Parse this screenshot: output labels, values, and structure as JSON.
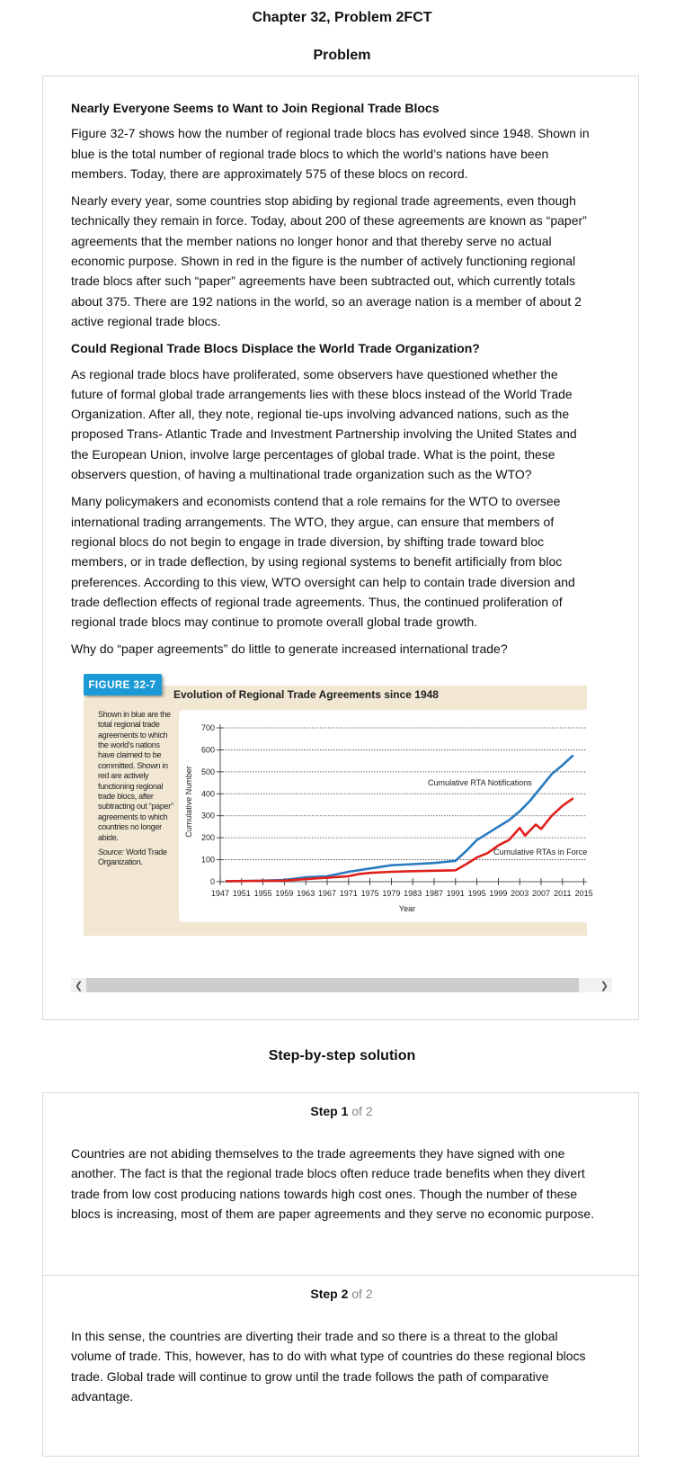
{
  "header": {
    "title": "Chapter 32, Problem 2FCT",
    "section": "Problem"
  },
  "problem": {
    "heading1": "Nearly Everyone Seems to Want to Join Regional Trade Blocs",
    "paragraphs1": [
      "Figure 32-7 shows how the number of regional trade blocs has evolved since 1948. Shown in blue is the total number of regional trade blocs to which the world’s nations have been members. Today, there are approximately 575 of these blocs on record.",
      "Nearly every year, some countries stop abiding by regional trade agreements, even though technically they remain in force. Today, about 200 of these agreements are known as “paper” agreements that the member nations no longer honor and that thereby serve no actual economic purpose. Shown in red in the figure is the number of actively functioning regional trade blocs after such “paper” agreements have been subtracted out, which currently totals about 375. There are 192 nations in the world, so an average nation is a member of about 2 active regional trade blocs."
    ],
    "heading2": "Could Regional Trade Blocs Displace the World Trade Organization?",
    "paragraphs2": [
      "As regional trade blocs have proliferated, some observers have questioned whether the future of formal global trade arrangements lies with these blocs instead of the World Trade Organization. After all, they note, regional tie-ups involving advanced nations, such as the proposed Trans- Atlantic Trade and Investment Partnership involving the United States and the European Union, involve large percentages of global trade. What is the point, these observers question, of having a multinational trade organization such as the WTO?",
      "Many policymakers and economists contend that a role remains for the WTO to oversee international trading arrangements. The WTO, they argue, can ensure that members of regional blocs do not begin to engage in trade diversion, by shifting trade toward bloc members, or in trade deflection, by using regional systems to benefit artificially from bloc preferences. According to this view, WTO oversight can help to contain trade diversion and trade deflection effects of regional trade agreements. Thus, the continued proliferation of regional trade blocs may continue to promote overall global trade growth."
    ],
    "question": "Why do “paper agreements” do little to generate increased international trade?"
  },
  "figure": {
    "label": "FIGURE 32-7",
    "caption": "Shown in blue are the total regional trade agreements to which the world’s nations have claimed to be committed. Shown in red are actively functioning regional trade blocs, after subtracting out “paper” agreements to which countries no longer abide.",
    "source_label": "Source:",
    "source": "World Trade Organization.",
    "chart_data": {
      "type": "line",
      "title": "Evolution of Regional Trade Agreements since 1948",
      "x_label": "Year",
      "y_label": "Cumulative Number",
      "xlim": [
        1947,
        2015
      ],
      "xticks": [
        1947,
        1951,
        1955,
        1959,
        1963,
        1967,
        1971,
        1975,
        1979,
        1983,
        1987,
        1991,
        1995,
        1999,
        2003,
        2007,
        2011,
        2015
      ],
      "ylim": [
        0,
        700
      ],
      "yticks": [
        0,
        100,
        200,
        300,
        400,
        500,
        600,
        700
      ],
      "grid": true,
      "series": [
        {
          "name": "Cumulative RTA Notifications",
          "color": "#2a7bc0",
          "x": [
            1948,
            1951,
            1955,
            1959,
            1963,
            1967,
            1971,
            1975,
            1979,
            1983,
            1987,
            1991,
            1993,
            1995,
            1997,
            1999,
            2001,
            2003,
            2005,
            2007,
            2009,
            2011,
            2013
          ],
          "values": [
            2,
            3,
            5,
            8,
            20,
            25,
            45,
            60,
            75,
            80,
            85,
            95,
            140,
            190,
            220,
            250,
            280,
            320,
            370,
            430,
            490,
            530,
            575
          ]
        },
        {
          "name": "Cumulative RTAs in Force",
          "color": "#e0201b",
          "x": [
            1948,
            1955,
            1959,
            1963,
            1967,
            1971,
            1973,
            1975,
            1979,
            1983,
            1987,
            1991,
            1993,
            1995,
            1997,
            1999,
            2001,
            2003,
            2004,
            2005,
            2006,
            2007,
            2009,
            2011,
            2013
          ],
          "values": [
            2,
            4,
            5,
            12,
            18,
            25,
            35,
            40,
            45,
            48,
            50,
            52,
            80,
            110,
            130,
            165,
            190,
            245,
            210,
            235,
            260,
            240,
            300,
            345,
            380
          ]
        }
      ]
    }
  },
  "solution": {
    "title": "Step-by-step solution",
    "steps": [
      {
        "label": "Step 1",
        "of": "of 2",
        "text": "Countries are not abiding themselves to the trade agreements they have signed with one another. The fact is that the regional trade blocs often reduce trade benefits when they divert trade from low cost producing nations towards high cost ones. Though the number of these blocs is increasing, most of them are paper agreements and they serve no economic purpose."
      },
      {
        "label": "Step 2",
        "of": "of 2",
        "text": "In this sense, the countries are diverting their trade and so there is a threat to the global volume of trade. This, however, has to do with what type of countries do these regional blocs trade. Global trade will continue to grow until the trade follows the path of comparative advantage."
      }
    ]
  }
}
